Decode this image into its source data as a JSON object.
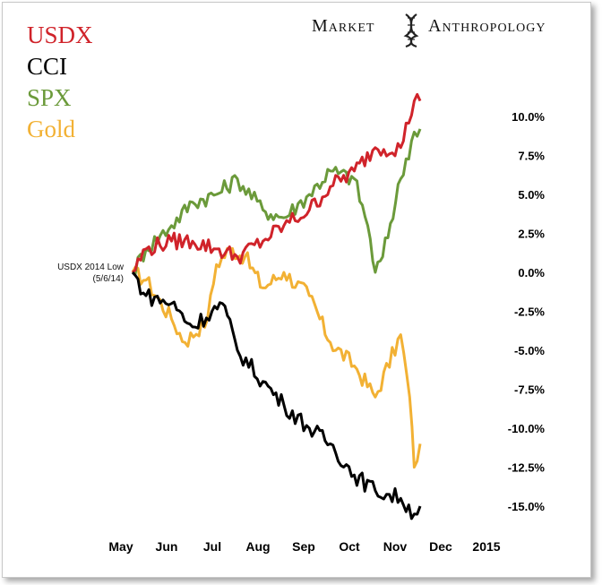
{
  "brand": {
    "word1": "Market",
    "word2": "Anthropology",
    "logo_icon": "dna-helix-icon"
  },
  "annotation": {
    "line1": "USDX 2014 Low",
    "line2": "(5/6/14)"
  },
  "colors": {
    "USDX": "#d0232a",
    "CCI": "#000000",
    "SPX": "#6b9a3a",
    "Gold": "#f2b134"
  },
  "chart_data": {
    "type": "line",
    "x_axis": {
      "tick_labels": [
        "May",
        "Jun",
        "Jul",
        "Aug",
        "Sep",
        "Oct",
        "Nov",
        "Dec",
        "2015"
      ]
    },
    "y_axis": {
      "unit": "percent change",
      "ylim": [
        -16.5,
        12
      ],
      "tick_values": [
        10,
        7.5,
        5,
        2.5,
        0,
        -2.5,
        -5,
        -7.5,
        -10,
        -12.5,
        -15
      ],
      "tick_labels": [
        "10.0%",
        "7.5%",
        "5.0%",
        "2.5%",
        "0.0%",
        "-2.5%",
        "-5.0%",
        "-7.5%",
        "-10.0%",
        "-12.5%",
        "-15.0%"
      ]
    },
    "grid": false,
    "legend": "top-left",
    "series": [
      {
        "name": "USDX",
        "x": [
          "2014-05-06",
          "2014-05-15",
          "2014-06-01",
          "2014-06-15",
          "2014-07-01",
          "2014-07-15",
          "2014-08-01",
          "2014-08-15",
          "2014-09-01",
          "2014-09-15",
          "2014-10-01",
          "2014-10-15",
          "2014-11-01",
          "2014-11-10",
          "2014-11-14"
        ],
        "y": [
          0,
          1.5,
          2.0,
          2.0,
          1.5,
          1.0,
          2.0,
          3.0,
          4.0,
          5.5,
          6.5,
          8.0,
          8.0,
          11.0,
          11.0
        ]
      },
      {
        "name": "SPX",
        "x": [
          "2014-05-06",
          "2014-05-15",
          "2014-06-01",
          "2014-06-15",
          "2014-07-01",
          "2014-07-15",
          "2014-08-01",
          "2014-08-15",
          "2014-09-01",
          "2014-09-15",
          "2014-10-01",
          "2014-10-10",
          "2014-10-15",
          "2014-10-20",
          "2014-11-01",
          "2014-11-10",
          "2014-11-14"
        ],
        "y": [
          0,
          1.5,
          3.0,
          4.5,
          5.0,
          6.0,
          4.0,
          3.5,
          5.0,
          6.5,
          6.0,
          3.0,
          0.0,
          1.0,
          6.0,
          9.0,
          9.2
        ]
      },
      {
        "name": "Gold",
        "x": [
          "2014-05-06",
          "2014-05-15",
          "2014-06-01",
          "2014-06-10",
          "2014-06-25",
          "2014-07-01",
          "2014-07-10",
          "2014-07-20",
          "2014-08-01",
          "2014-08-15",
          "2014-09-01",
          "2014-09-15",
          "2014-10-01",
          "2014-10-15",
          "2014-11-01",
          "2014-11-07",
          "2014-11-10",
          "2014-11-14"
        ],
        "y": [
          0,
          -0.5,
          -3.0,
          -4.5,
          -3.0,
          0.5,
          1.5,
          1.0,
          -1.0,
          0.0,
          -1.5,
          -4.5,
          -6.0,
          -8.0,
          -4.0,
          -8.0,
          -12.5,
          -11.0
        ]
      },
      {
        "name": "CCI",
        "x": [
          "2014-05-06",
          "2014-05-15",
          "2014-06-01",
          "2014-06-15",
          "2014-06-28",
          "2014-07-05",
          "2014-07-15",
          "2014-08-01",
          "2014-08-15",
          "2014-09-01",
          "2014-09-15",
          "2014-10-01",
          "2014-10-15",
          "2014-11-01",
          "2014-11-10",
          "2014-11-14"
        ],
        "y": [
          0,
          -1.5,
          -2.0,
          -3.5,
          -2.5,
          -2.0,
          -5.0,
          -7.0,
          -8.5,
          -10.0,
          -11.0,
          -13.0,
          -14.0,
          -14.5,
          -15.5,
          -15.0
        ]
      }
    ]
  }
}
